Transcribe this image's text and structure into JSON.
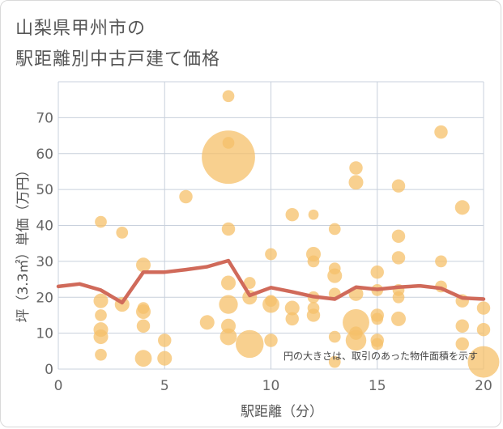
{
  "chart_data": {
    "type": "scatter",
    "title_line1": "山梨県甲州市の",
    "title_line2": "駅距離別中古戸建て価格",
    "xlabel": "駅距離（分）",
    "ylabel": "坪（3.3㎡）単価（万円）",
    "xlim": [
      0,
      20
    ],
    "ylim": [
      0,
      80
    ],
    "x_ticks": [
      0,
      5,
      10,
      15,
      20
    ],
    "y_ticks": [
      0,
      10,
      20,
      30,
      40,
      50,
      60,
      70
    ],
    "grid": true,
    "note": "円の大きさは、取引のあった物件面積を示す",
    "colors": {
      "bubble": "#f5c06a",
      "line": "#d06a5a",
      "grid": "#c8d0dc"
    },
    "points": [
      {
        "x": 2,
        "y": 41,
        "s": 2
      },
      {
        "x": 2,
        "y": 19,
        "s": 3
      },
      {
        "x": 2,
        "y": 15,
        "s": 2
      },
      {
        "x": 2,
        "y": 11,
        "s": 3
      },
      {
        "x": 2,
        "y": 9,
        "s": 3
      },
      {
        "x": 2,
        "y": 4,
        "s": 2
      },
      {
        "x": 3,
        "y": 38,
        "s": 2
      },
      {
        "x": 3,
        "y": 18,
        "s": 3
      },
      {
        "x": 4,
        "y": 29,
        "s": 3
      },
      {
        "x": 4,
        "y": 17,
        "s": 2
      },
      {
        "x": 4,
        "y": 16,
        "s": 3
      },
      {
        "x": 4,
        "y": 12,
        "s": 2.5
      },
      {
        "x": 4,
        "y": 3,
        "s": 4
      },
      {
        "x": 5,
        "y": 8,
        "s": 2.5
      },
      {
        "x": 5,
        "y": 3,
        "s": 3
      },
      {
        "x": 6,
        "y": 48,
        "s": 2.5
      },
      {
        "x": 7,
        "y": 13,
        "s": 3
      },
      {
        "x": 8,
        "y": 76,
        "s": 2
      },
      {
        "x": 8,
        "y": 63,
        "s": 2
      },
      {
        "x": 8,
        "y": 59,
        "s": 40
      },
      {
        "x": 8,
        "y": 39,
        "s": 2.5
      },
      {
        "x": 8,
        "y": 24,
        "s": 3
      },
      {
        "x": 8,
        "y": 18,
        "s": 5
      },
      {
        "x": 8,
        "y": 12,
        "s": 3
      },
      {
        "x": 8,
        "y": 9,
        "s": 4
      },
      {
        "x": 9,
        "y": 24,
        "s": 2
      },
      {
        "x": 9,
        "y": 20,
        "s": 3
      },
      {
        "x": 9,
        "y": 7,
        "s": 11
      },
      {
        "x": 10,
        "y": 32,
        "s": 2
      },
      {
        "x": 10,
        "y": 19,
        "s": 2
      },
      {
        "x": 10,
        "y": 18,
        "s": 4
      },
      {
        "x": 10,
        "y": 8,
        "s": 2.5
      },
      {
        "x": 11,
        "y": 43,
        "s": 2.5
      },
      {
        "x": 11,
        "y": 17,
        "s": 3
      },
      {
        "x": 11,
        "y": 14,
        "s": 2.5
      },
      {
        "x": 12,
        "y": 43,
        "s": 1.5
      },
      {
        "x": 12,
        "y": 32,
        "s": 3
      },
      {
        "x": 12,
        "y": 30,
        "s": 2
      },
      {
        "x": 12,
        "y": 20,
        "s": 2
      },
      {
        "x": 12,
        "y": 17,
        "s": 2
      },
      {
        "x": 12,
        "y": 15,
        "s": 2.5
      },
      {
        "x": 13,
        "y": 39,
        "s": 2
      },
      {
        "x": 13,
        "y": 28,
        "s": 2
      },
      {
        "x": 13,
        "y": 26,
        "s": 3
      },
      {
        "x": 13,
        "y": 21,
        "s": 2
      },
      {
        "x": 13,
        "y": 9,
        "s": 2
      },
      {
        "x": 13,
        "y": 2,
        "s": 2
      },
      {
        "x": 14,
        "y": 56,
        "s": 2.5
      },
      {
        "x": 14,
        "y": 52,
        "s": 3
      },
      {
        "x": 14,
        "y": 21,
        "s": 3
      },
      {
        "x": 14,
        "y": 13,
        "s": 10
      },
      {
        "x": 14,
        "y": 10,
        "s": 2.5
      },
      {
        "x": 14,
        "y": 8,
        "s": 6
      },
      {
        "x": 15,
        "y": 27,
        "s": 2.5
      },
      {
        "x": 15,
        "y": 22,
        "s": 2
      },
      {
        "x": 15,
        "y": 15,
        "s": 2.5
      },
      {
        "x": 15,
        "y": 14,
        "s": 2
      },
      {
        "x": 15,
        "y": 8,
        "s": 2.5
      },
      {
        "x": 15,
        "y": 7,
        "s": 2
      },
      {
        "x": 16,
        "y": 51,
        "s": 2.5
      },
      {
        "x": 16,
        "y": 37,
        "s": 2.5
      },
      {
        "x": 16,
        "y": 31,
        "s": 2.5
      },
      {
        "x": 16,
        "y": 22,
        "s": 2
      },
      {
        "x": 16,
        "y": 20,
        "s": 2
      },
      {
        "x": 16,
        "y": 14,
        "s": 3
      },
      {
        "x": 18,
        "y": 66,
        "s": 2.5
      },
      {
        "x": 18,
        "y": 30,
        "s": 2
      },
      {
        "x": 18,
        "y": 23,
        "s": 2
      },
      {
        "x": 19,
        "y": 45,
        "s": 3
      },
      {
        "x": 19,
        "y": 19,
        "s": 2.5
      },
      {
        "x": 19,
        "y": 12,
        "s": 2.5
      },
      {
        "x": 19,
        "y": 7,
        "s": 2.5
      },
      {
        "x": 20,
        "y": 17,
        "s": 2.5
      },
      {
        "x": 20,
        "y": 11,
        "s": 2.5
      },
      {
        "x": 20,
        "y": 2,
        "s": 14
      }
    ],
    "series": [
      {
        "x": [
          0,
          1,
          2,
          3,
          4,
          5,
          6,
          7,
          8,
          9,
          10,
          11,
          12,
          13,
          14,
          15,
          16,
          17,
          18,
          19,
          20
        ],
        "values": [
          23,
          23.7,
          22,
          18.5,
          27,
          27,
          27.7,
          28.5,
          30.2,
          20.5,
          22.7,
          21.5,
          20.2,
          19.5,
          22.8,
          22.2,
          22.8,
          23.2,
          22.5,
          19.8,
          19.5
        ]
      }
    ]
  }
}
